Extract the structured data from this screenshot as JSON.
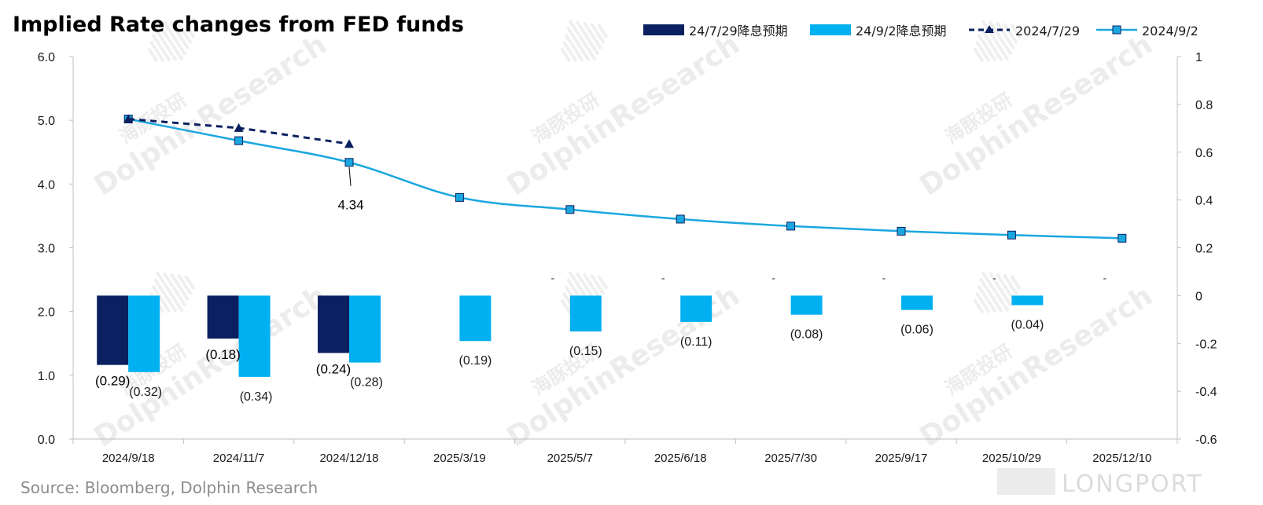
{
  "chart_data": {
    "type": "bar+line",
    "title": "Implied Rate changes from FED funds",
    "categories": [
      "2024/9/18",
      "2024/11/7",
      "2024/12/18",
      "2025/3/19",
      "2025/5/7",
      "2025/6/18",
      "2025/7/30",
      "2025/9/17",
      "2025/10/29",
      "2025/12/10"
    ],
    "bar_series": [
      {
        "name": "24/7/29降息预期",
        "color": "#0b2060",
        "axis": "right",
        "values": [
          -0.29,
          -0.18,
          -0.24,
          null,
          null,
          null,
          null,
          null,
          null,
          null
        ],
        "labels": [
          "(0.29)",
          "(0.18)",
          "(0.24)",
          "",
          "",
          "",
          "",
          "",
          "",
          ""
        ]
      },
      {
        "name": "24/9/2降息预期",
        "color": "#00b0f0",
        "axis": "right",
        "values": [
          -0.32,
          -0.34,
          -0.28,
          -0.19,
          -0.15,
          -0.11,
          -0.08,
          -0.06,
          -0.04,
          null
        ],
        "labels": [
          "(0.32)",
          "(0.34)",
          "(0.28)",
          "(0.19)",
          "(0.15)",
          "(0.11)",
          "(0.08)",
          "(0.06)",
          "(0.04)",
          ""
        ]
      }
    ],
    "line_series": [
      {
        "name": "2024/7/29",
        "color": "#0b2060",
        "dashed": true,
        "marker": "triangle",
        "axis": "left",
        "values": [
          5.02,
          4.88,
          4.63,
          null,
          null,
          null,
          null,
          null,
          null,
          null
        ]
      },
      {
        "name": "2024/9/2",
        "color": "#1aa7e0",
        "dashed": false,
        "marker": "square",
        "axis": "left",
        "values": [
          5.02,
          4.68,
          4.34,
          3.79,
          3.6,
          3.45,
          3.34,
          3.26,
          3.2,
          3.15
        ]
      }
    ],
    "annotations": [
      {
        "text": "4.34",
        "category": "2024/12/18",
        "value": 4.34
      }
    ],
    "dash_marks": [
      "-",
      "-",
      "-",
      "-",
      "-",
      "-"
    ],
    "y_left": {
      "min": 0,
      "max": 6,
      "ticks": [
        "0.0",
        "1.0",
        "2.0",
        "3.0",
        "4.0",
        "5.0",
        "6.0"
      ]
    },
    "y_right": {
      "min": -0.6,
      "max": 1,
      "ticks": [
        "-0.6",
        "-0.4",
        "-0.2",
        "0",
        "0.2",
        "0.4",
        "0.6",
        "0.8",
        "1"
      ]
    },
    "legend_position": "top-right",
    "grid": false
  },
  "source": "Source: Bloomberg, Dolphin Research",
  "watermark": {
    "cn": "海豚投研",
    "en": "DolphinResearch"
  },
  "brand": "LONGPORT"
}
